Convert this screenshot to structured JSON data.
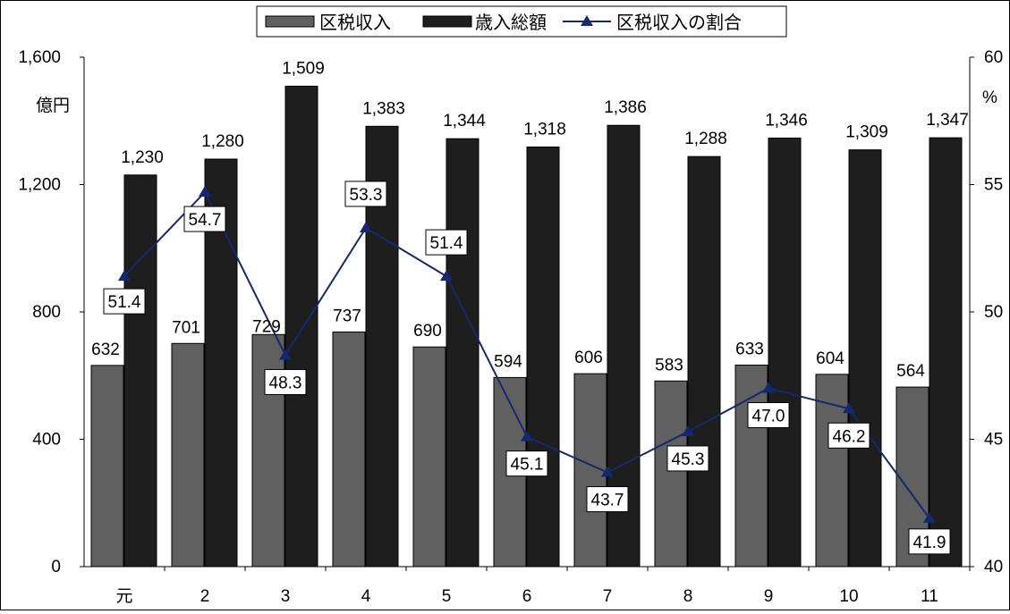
{
  "chart_data": {
    "type": "bar+line",
    "categories": [
      "元",
      "2",
      "3",
      "4",
      "5",
      "6",
      "7",
      "8",
      "9",
      "10",
      "11"
    ],
    "series": [
      {
        "name": "区税収入",
        "type": "bar",
        "axis": "left",
        "color": "#606060",
        "values": [
          632,
          701,
          729,
          737,
          690,
          594,
          606,
          583,
          633,
          604,
          564
        ],
        "labels": [
          "632",
          "701",
          "729",
          "737",
          "690",
          "594",
          "606",
          "583",
          "633",
          "604",
          "564"
        ]
      },
      {
        "name": "歳入総額",
        "type": "bar",
        "axis": "left",
        "color": "#1e1e1e",
        "values": [
          1230,
          1280,
          1509,
          1383,
          1344,
          1318,
          1386,
          1288,
          1346,
          1309,
          1347
        ],
        "labels": [
          "1,230",
          "1,280",
          "1,509",
          "1,383",
          "1,344",
          "1,318",
          "1,386",
          "1,288",
          "1,346",
          "1,309",
          "1,347"
        ]
      },
      {
        "name": "区税収入の割合",
        "type": "line",
        "axis": "right",
        "color": "#14286e",
        "values": [
          51.4,
          54.7,
          48.3,
          53.3,
          51.4,
          45.1,
          43.7,
          45.3,
          47.0,
          46.2,
          41.9
        ],
        "labels": [
          "51.4",
          "54.7",
          "48.3",
          "53.3",
          "51.4",
          "45.1",
          "43.7",
          "45.3",
          "47.0",
          "46.2",
          "41.9"
        ]
      }
    ],
    "y_left": {
      "unit": "億円",
      "range": [
        0,
        1600
      ],
      "ticks": [
        0,
        400,
        800,
        1200,
        1600
      ],
      "tick_labels": [
        "0",
        "400",
        "800",
        "1,200",
        "1,600"
      ]
    },
    "y_right": {
      "unit": "%",
      "range": [
        40,
        60
      ],
      "ticks": [
        40,
        45,
        50,
        55,
        60
      ],
      "tick_labels": [
        "40",
        "45",
        "50",
        "55",
        "60"
      ]
    },
    "legend": {
      "placement": "top-center"
    },
    "grid": false
  }
}
